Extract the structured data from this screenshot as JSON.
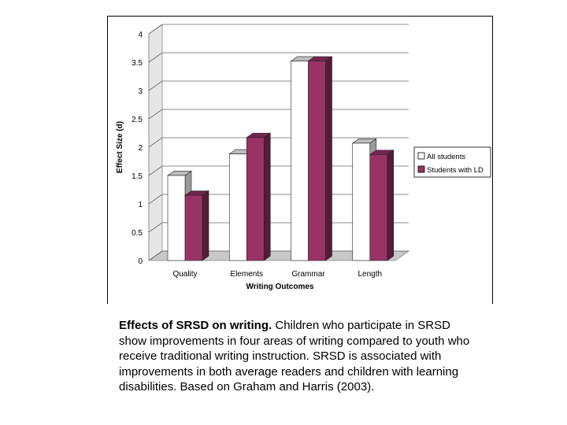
{
  "chart_data": {
    "type": "bar",
    "categories": [
      "Quality",
      "Elements",
      "Grammar",
      "Length"
    ],
    "series": [
      {
        "name": "All students",
        "values": [
          1.5,
          1.88,
          3.52,
          2.07
        ],
        "color": "#ffffff"
      },
      {
        "name": "Students with LD",
        "values": [
          1.15,
          2.17,
          3.52,
          1.87
        ],
        "color": "#993366"
      }
    ],
    "ylabel": "Effect Size (d)",
    "xlabel": "Writing Outcomes",
    "ylim": [
      0,
      4
    ],
    "yticks": [
      "0",
      "0.5",
      "1",
      "1.5",
      "2",
      "2.5",
      "3",
      "3.5",
      "4"
    ],
    "grid": true,
    "legend": "right"
  },
  "caption": {
    "title": "Effects of SRSD on writing.",
    "body": " Children who participate in SRSD show improvements in four areas of writing compared to youth who receive traditional writing instruction. SRSD is associated with improvements in both average readers and children with learning disabilities. Based on Graham and Harris (2003)."
  }
}
